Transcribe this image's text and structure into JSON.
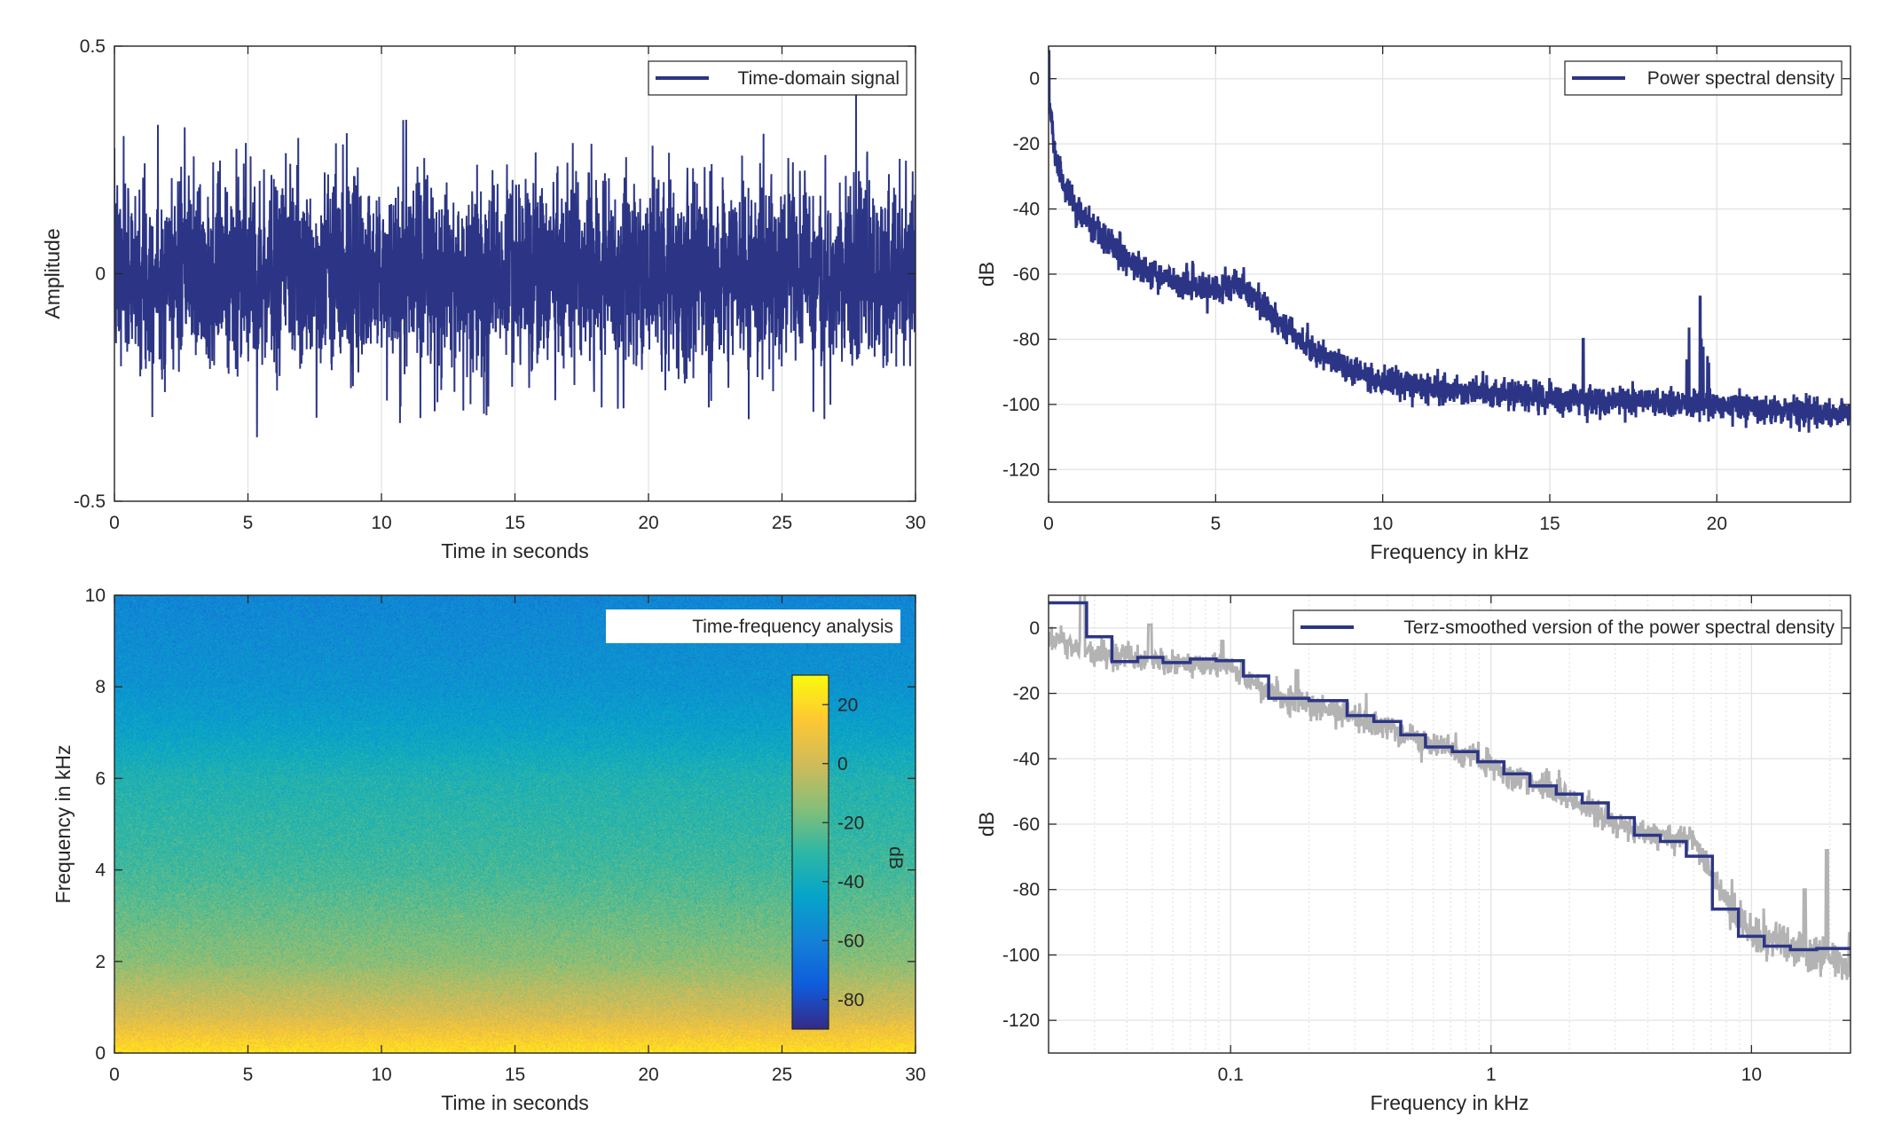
{
  "colors": {
    "signal": "#2c3585",
    "raw_psd": "#b3b3b3",
    "grid": "#e3e3e3",
    "axes": "#262626"
  },
  "chart_data": [
    {
      "type": "line",
      "legend": "Time-domain signal",
      "legend_position": "top-right",
      "xlabel": "Time in seconds",
      "ylabel": "Amplitude",
      "xlim": [
        0,
        30
      ],
      "ylim": [
        -0.5,
        0.5
      ],
      "x_ticks": [
        0,
        5,
        10,
        15,
        20,
        25,
        30
      ],
      "x_tick_labels": [
        "0",
        "5",
        "10",
        "15",
        "20",
        "25",
        "30"
      ],
      "y_ticks": [
        -0.5,
        0,
        0.5
      ],
      "y_tick_labels": [
        "-0.5",
        "0",
        "0.5"
      ],
      "grid": true,
      "signal": {
        "kind": "noise",
        "approx_peak": 0.42
      }
    },
    {
      "type": "line",
      "legend": "Power spectral density",
      "legend_position": "top-right",
      "xlabel": "Frequency in kHz",
      "ylabel": "dB",
      "xlim": [
        0,
        24
      ],
      "ylim": [
        -130,
        10
      ],
      "x_ticks": [
        0,
        5,
        10,
        15,
        20
      ],
      "x_tick_labels": [
        "0",
        "5",
        "10",
        "15",
        "20"
      ],
      "y_ticks": [
        -120,
        -100,
        -80,
        -60,
        -40,
        -20,
        0
      ],
      "y_tick_labels": [
        "-120",
        "-100",
        "-80",
        "-60",
        "-40",
        "-20",
        "0"
      ],
      "grid": true,
      "envelope": {
        "f_khz": [
          0.02,
          0.03,
          0.1,
          0.14,
          0.3,
          1,
          2,
          3,
          5,
          5.8,
          7,
          8,
          10,
          15,
          20,
          24
        ],
        "db": [
          -3,
          -8,
          -12,
          -20,
          -27,
          -42,
          -52,
          -60,
          -65,
          -63,
          -75,
          -84,
          -93,
          -98,
          -100,
          -103
        ]
      },
      "peaks": [
        {
          "f_khz": 16,
          "db": -80
        },
        {
          "f_khz": 19.5,
          "db": -67
        }
      ]
    },
    {
      "type": "heatmap",
      "legend": "Time-frequency analysis",
      "legend_position": "top-right",
      "xlabel": "Time in seconds",
      "ylabel": "Frequency in kHz",
      "xlim": [
        0,
        30
      ],
      "ylim": [
        0,
        10
      ],
      "x_ticks": [
        0,
        5,
        10,
        15,
        20,
        25,
        30
      ],
      "x_tick_labels": [
        "0",
        "5",
        "10",
        "15",
        "20",
        "25",
        "30"
      ],
      "y_ticks": [
        0,
        2,
        4,
        6,
        8,
        10
      ],
      "y_tick_labels": [
        "0",
        "2",
        "4",
        "6",
        "8",
        "10"
      ],
      "colormap": "parula",
      "colorbar": {
        "label": "dB",
        "clim": [
          -90,
          30
        ],
        "ticks": [
          -80,
          -60,
          -40,
          -20,
          0,
          20
        ],
        "tick_labels": [
          "-80",
          "-60",
          "-40",
          "-20",
          "0",
          "20"
        ]
      },
      "level_profile": {
        "f_khz": [
          0,
          0.3,
          0.8,
          2,
          4,
          6,
          7,
          8,
          10
        ],
        "db": [
          22,
          15,
          3,
          -14,
          -27,
          -35,
          -45,
          -52,
          -58
        ]
      }
    },
    {
      "type": "line",
      "legend": "Terz-smoothed version of the power spectral density",
      "legend_position": "top-right",
      "xlabel": "Frequency in kHz",
      "ylabel": "dB",
      "xscale": "log",
      "xlim": [
        0.02,
        24
      ],
      "ylim": [
        -130,
        10
      ],
      "x_ticks": [
        0.1,
        1,
        10
      ],
      "x_tick_labels": [
        "0.1",
        "1",
        "10"
      ],
      "y_ticks": [
        -120,
        -100,
        -80,
        -60,
        -40,
        -20,
        0
      ],
      "y_tick_labels": [
        "-120",
        "-100",
        "-80",
        "-60",
        "-40",
        "-20",
        "0"
      ],
      "grid": true,
      "terz_band_edges_khz": [
        0.02,
        0.028,
        0.035,
        0.044,
        0.055,
        0.07,
        0.088,
        0.112,
        0.14,
        0.2,
        0.28,
        0.355,
        0.45,
        0.56,
        0.71,
        0.89,
        1.12,
        1.41,
        1.78,
        2.24,
        2.82,
        3.55,
        4.47,
        5.62,
        7.08,
        8.91,
        11.2,
        14.1,
        17.8,
        24
      ],
      "terz_levels_db": [
        7.7,
        -2.7,
        -10.3,
        -9,
        -10.6,
        -9.5,
        -10,
        -14.7,
        -21.5,
        -22.2,
        -26.8,
        -28.6,
        -32.7,
        -36.4,
        -37.8,
        -40.9,
        -44.6,
        -48.3,
        -50.8,
        -53.5,
        -58,
        -63.4,
        -65.3,
        -69.8,
        -86,
        -94.3,
        -97.3,
        -98.4,
        -98
      ]
    }
  ]
}
